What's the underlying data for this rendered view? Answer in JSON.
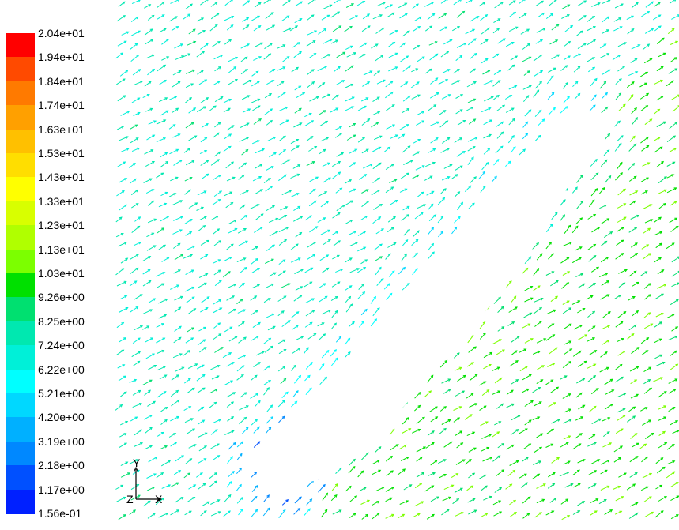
{
  "colorbar": {
    "labels": [
      "2.04e+01",
      "1.94e+01",
      "1.84e+01",
      "1.74e+01",
      "1.63e+01",
      "1.53e+01",
      "1.43e+01",
      "1.33e+01",
      "1.23e+01",
      "1.13e+01",
      "1.03e+01",
      "9.26e+00",
      "8.25e+00",
      "7.24e+00",
      "6.22e+00",
      "5.21e+00",
      "4.20e+00",
      "3.19e+00",
      "2.18e+00",
      "1.17e+00",
      "1.56e-01"
    ],
    "colors": [
      "#ff0000",
      "#ff4a00",
      "#ff7a00",
      "#ffa000",
      "#ffc000",
      "#ffde00",
      "#ffff00",
      "#d8ff00",
      "#b0ff00",
      "#7cff00",
      "#00e000",
      "#00e070",
      "#00e8b0",
      "#00f0d8",
      "#00ffff",
      "#00d8ff",
      "#00b0ff",
      "#0088ff",
      "#0050ff",
      "#0020ff"
    ]
  },
  "axes": {
    "y": "Y",
    "z": "Z",
    "x": "X"
  },
  "field": {
    "min": 0.156,
    "max": 20.4
  }
}
